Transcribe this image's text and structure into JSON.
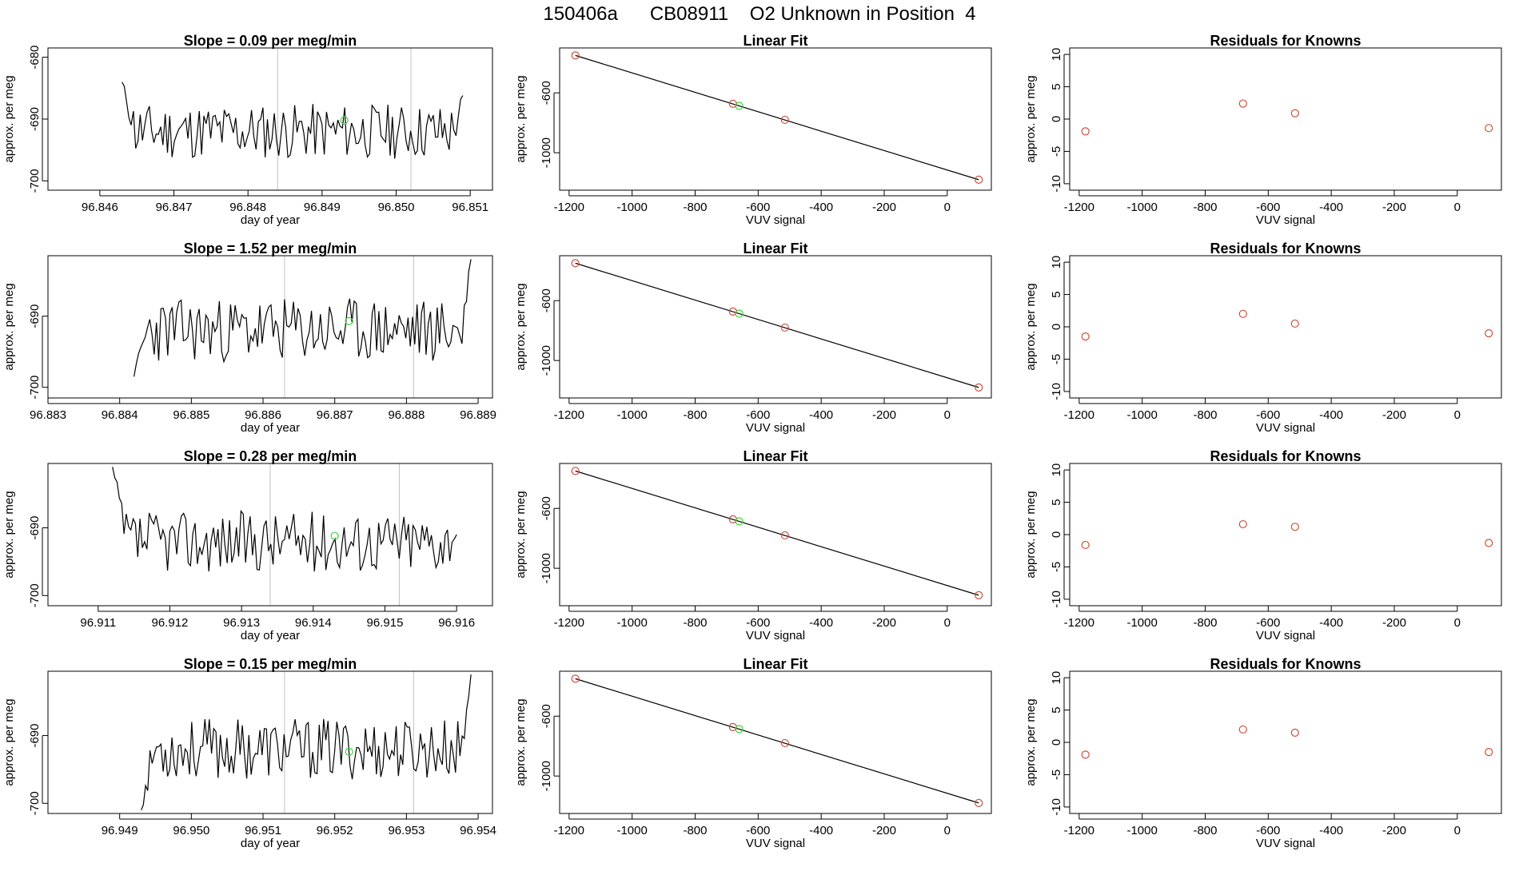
{
  "header": {
    "title": "150406a      CB08911    O2 Unknown in Position  4"
  },
  "colors": {
    "line": "#000000",
    "known_point": "#cd4f39",
    "unknown_point": "#3cd13c",
    "vertical_marker": "#c0c0c0",
    "frame": "#000000"
  },
  "chart_data": [
    {
      "type": "line",
      "row": 1,
      "title": "Slope =  0.09  per meg/min",
      "xlabel": "day of year",
      "ylabel": "approx. per meg",
      "xlim": [
        96.8453,
        96.8513
      ],
      "ylim": [
        -701.5,
        -678.5
      ],
      "xticks": [
        "96.846",
        "96.847",
        "96.848",
        "96.849",
        "96.850",
        "96.851"
      ],
      "yticks": [
        "-680",
        "-690",
        "-700"
      ],
      "series_range": [
        96.8463,
        96.8509
      ],
      "series_wave": [
        -684.0,
        -686.2
      ],
      "series_seed": 11,
      "vlines": [
        96.8484,
        96.8502
      ],
      "unknown_point": {
        "x": 96.8493,
        "y": -690.2
      }
    },
    {
      "type": "scatter",
      "row": 1,
      "title": "Linear Fit",
      "xlabel": "VUV signal",
      "ylabel": "approx. per meg",
      "xlim": [
        -1230,
        140
      ],
      "ylim": [
        -1250,
        -300
      ],
      "xticks": [
        "-1200",
        "-1000",
        "-800",
        "-600",
        "-400",
        "-200",
        "0"
      ],
      "yticks": [
        "-600",
        "-1000"
      ],
      "fit_line": {
        "x": [
          -1180,
          100
        ],
        "y": [
          -350,
          -1180
        ]
      },
      "known_points": [
        {
          "x": -1180,
          "y": -350
        },
        {
          "x": -680,
          "y": -673
        },
        {
          "x": -515,
          "y": -780
        },
        {
          "x": 100,
          "y": -1180
        }
      ],
      "unknown_point": {
        "x": -660,
        "y": -687
      }
    },
    {
      "type": "scatter",
      "row": 1,
      "title": "Residuals for Knowns",
      "xlabel": "VUV signal",
      "ylabel": "approx. per meg",
      "xlim": [
        -1230,
        140
      ],
      "ylim": [
        -11,
        11
      ],
      "xticks": [
        "-1200",
        "-1000",
        "-800",
        "-600",
        "-400",
        "-200",
        "0"
      ],
      "yticks": [
        "10",
        "5",
        "0",
        "-5",
        "-10"
      ],
      "known_points": [
        {
          "x": -1180,
          "y": -1.9
        },
        {
          "x": -680,
          "y": 2.4
        },
        {
          "x": -515,
          "y": 0.9
        },
        {
          "x": 100,
          "y": -1.4
        }
      ]
    },
    {
      "type": "line",
      "row": 2,
      "title": "Slope =  1.52  per meg/min",
      "xlabel": "day of year",
      "ylabel": "approx. per meg",
      "xlim": [
        96.883,
        96.8892
      ],
      "ylim": [
        -701.5,
        -681.5
      ],
      "xticks": [
        "96.883",
        "96.884",
        "96.885",
        "96.886",
        "96.887",
        "96.888",
        "96.889"
      ],
      "yticks": [
        "-690",
        "-700"
      ],
      "series_range": [
        96.8842,
        96.8889
      ],
      "series_wave": [
        -698.5,
        -682.0
      ],
      "series_seed": 23,
      "vlines": [
        96.8863,
        96.8881
      ],
      "unknown_point": {
        "x": 96.8872,
        "y": -690.7
      }
    },
    {
      "type": "scatter",
      "row": 2,
      "title": "Linear Fit",
      "xlabel": "VUV signal",
      "ylabel": "approx. per meg",
      "xlim": [
        -1230,
        140
      ],
      "ylim": [
        -1250,
        -300
      ],
      "xticks": [
        "-1200",
        "-1000",
        "-800",
        "-600",
        "-400",
        "-200",
        "0"
      ],
      "yticks": [
        "-600",
        "-1000"
      ],
      "fit_line": {
        "x": [
          -1180,
          100
        ],
        "y": [
          -350,
          -1180
        ]
      },
      "known_points": [
        {
          "x": -1180,
          "y": -350
        },
        {
          "x": -680,
          "y": -673
        },
        {
          "x": -515,
          "y": -780
        },
        {
          "x": 100,
          "y": -1180
        }
      ],
      "unknown_point": {
        "x": -660,
        "y": -687
      }
    },
    {
      "type": "scatter",
      "row": 2,
      "title": "Residuals for Knowns",
      "xlabel": "VUV signal",
      "ylabel": "approx. per meg",
      "xlim": [
        -1230,
        140
      ],
      "ylim": [
        -11,
        11
      ],
      "xticks": [
        "-1200",
        "-1000",
        "-800",
        "-600",
        "-400",
        "-200",
        "0"
      ],
      "yticks": [
        "10",
        "5",
        "0",
        "-5",
        "-10"
      ],
      "known_points": [
        {
          "x": -1180,
          "y": -1.5
        },
        {
          "x": -680,
          "y": 2.0
        },
        {
          "x": -515,
          "y": 0.5
        },
        {
          "x": 100,
          "y": -1.0
        }
      ]
    },
    {
      "type": "line",
      "row": 3,
      "title": "Slope =  0.28  per meg/min",
      "xlabel": "day of year",
      "ylabel": "approx. per meg",
      "xlim": [
        96.9103,
        96.9165
      ],
      "ylim": [
        -701.5,
        -680.5
      ],
      "xticks": [
        "96.911",
        "96.912",
        "96.913",
        "96.914",
        "96.915",
        "96.916"
      ],
      "yticks": [
        "-690",
        "-700"
      ],
      "series_range": [
        96.9112,
        96.916
      ],
      "series_wave": [
        -681.0,
        -691.0
      ],
      "series_seed": 37,
      "vlines": [
        96.9134,
        96.9152
      ],
      "unknown_point": {
        "x": 96.9143,
        "y": -691.2
      }
    },
    {
      "type": "scatter",
      "row": 3,
      "title": "Linear Fit",
      "xlabel": "VUV signal",
      "ylabel": "approx. per meg",
      "xlim": [
        -1230,
        140
      ],
      "ylim": [
        -1250,
        -300
      ],
      "xticks": [
        "-1200",
        "-1000",
        "-800",
        "-600",
        "-400",
        "-200",
        "0"
      ],
      "yticks": [
        "-600",
        "-1000"
      ],
      "fit_line": {
        "x": [
          -1180,
          100
        ],
        "y": [
          -350,
          -1180
        ]
      },
      "known_points": [
        {
          "x": -1180,
          "y": -350
        },
        {
          "x": -680,
          "y": -673
        },
        {
          "x": -515,
          "y": -780
        },
        {
          "x": 100,
          "y": -1180
        }
      ],
      "unknown_point": {
        "x": -660,
        "y": -687
      }
    },
    {
      "type": "scatter",
      "row": 3,
      "title": "Residuals for Knowns",
      "xlabel": "VUV signal",
      "ylabel": "approx. per meg",
      "xlim": [
        -1230,
        140
      ],
      "ylim": [
        -11,
        11
      ],
      "xticks": [
        "-1200",
        "-1000",
        "-800",
        "-600",
        "-400",
        "-200",
        "0"
      ],
      "yticks": [
        "10",
        "5",
        "0",
        "-5",
        "-10"
      ],
      "known_points": [
        {
          "x": -1180,
          "y": -1.6
        },
        {
          "x": -680,
          "y": 1.6
        },
        {
          "x": -515,
          "y": 1.2
        },
        {
          "x": 100,
          "y": -1.3
        }
      ]
    },
    {
      "type": "line",
      "row": 4,
      "title": "Slope =  0.15  per meg/min",
      "xlabel": "day of year",
      "ylabel": "approx. per meg",
      "xlim": [
        96.948,
        96.9542
      ],
      "ylim": [
        -701.5,
        -680.5
      ],
      "xticks": [
        "96.949",
        "96.950",
        "96.951",
        "96.952",
        "96.953",
        "96.954"
      ],
      "yticks": [
        "-690",
        "-700"
      ],
      "series_range": [
        96.9493,
        96.9539
      ],
      "series_wave": [
        -701.0,
        -681.0
      ],
      "series_seed": 53,
      "vlines": [
        96.9513,
        96.9531
      ],
      "unknown_point": {
        "x": 96.9522,
        "y": -692.4
      }
    },
    {
      "type": "scatter",
      "row": 4,
      "title": "Linear Fit",
      "xlabel": "VUV signal",
      "ylabel": "approx. per meg",
      "xlim": [
        -1230,
        140
      ],
      "ylim": [
        -1250,
        -300
      ],
      "xticks": [
        "-1200",
        "-1000",
        "-800",
        "-600",
        "-400",
        "-200",
        "0"
      ],
      "yticks": [
        "-600",
        "-1000"
      ],
      "fit_line": {
        "x": [
          -1180,
          100
        ],
        "y": [
          -350,
          -1180
        ]
      },
      "known_points": [
        {
          "x": -1180,
          "y": -350
        },
        {
          "x": -680,
          "y": -673
        },
        {
          "x": -515,
          "y": -780
        },
        {
          "x": 100,
          "y": -1180
        }
      ],
      "unknown_point": {
        "x": -660,
        "y": -687
      }
    },
    {
      "type": "scatter",
      "row": 4,
      "title": "Residuals for Knowns",
      "xlabel": "VUV signal",
      "ylabel": "approx. per meg",
      "xlim": [
        -1230,
        140
      ],
      "ylim": [
        -11,
        11
      ],
      "xticks": [
        "-1200",
        "-1000",
        "-800",
        "-600",
        "-400",
        "-200",
        "0"
      ],
      "yticks": [
        "10",
        "5",
        "0",
        "-5",
        "-10"
      ],
      "known_points": [
        {
          "x": -1180,
          "y": -1.9
        },
        {
          "x": -680,
          "y": 2.0
        },
        {
          "x": -515,
          "y": 1.5
        },
        {
          "x": 100,
          "y": -1.5
        }
      ]
    }
  ]
}
